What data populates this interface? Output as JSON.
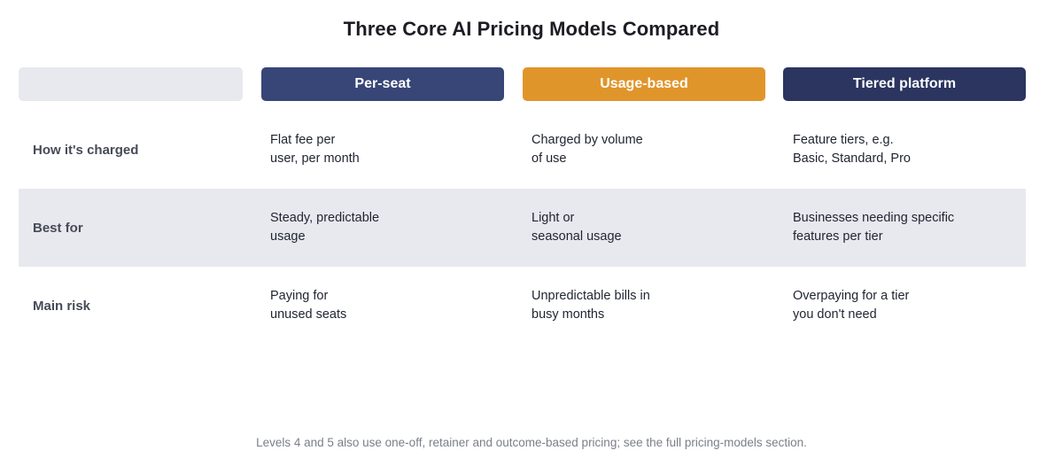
{
  "title": "Three Core AI Pricing Models Compared",
  "colors": {
    "per_seat": "#374677",
    "usage_based": "#e0952b",
    "tiered_platform": "#2b3560",
    "band": "#e8e9ef"
  },
  "columns": [
    {
      "label": "Per-seat"
    },
    {
      "label": "Usage-based"
    },
    {
      "label": "Tiered platform"
    }
  ],
  "rows": [
    {
      "label": "How it's charged",
      "cells": [
        {
          "line1": "Flat fee per",
          "line2": "user, per month"
        },
        {
          "line1": "Charged by volume",
          "line2": "of use"
        },
        {
          "line1": "Feature tiers, e.g.",
          "line2": "Basic, Standard, Pro"
        }
      ]
    },
    {
      "label": "Best for",
      "cells": [
        {
          "line1": "Steady, predictable",
          "line2": "usage"
        },
        {
          "line1": "Light or",
          "line2": "seasonal usage"
        },
        {
          "line1": "Businesses needing specific",
          "line2": "features per tier"
        }
      ]
    },
    {
      "label": "Main risk",
      "cells": [
        {
          "line1": "Paying for",
          "line2": "unused seats"
        },
        {
          "line1": "Unpredictable bills in",
          "line2": "busy months"
        },
        {
          "line1": "Overpaying for a tier",
          "line2": "you don't need"
        }
      ]
    }
  ],
  "footnote": "Levels 4 and 5 also use one-off, retainer and outcome-based pricing; see the full pricing-models section."
}
